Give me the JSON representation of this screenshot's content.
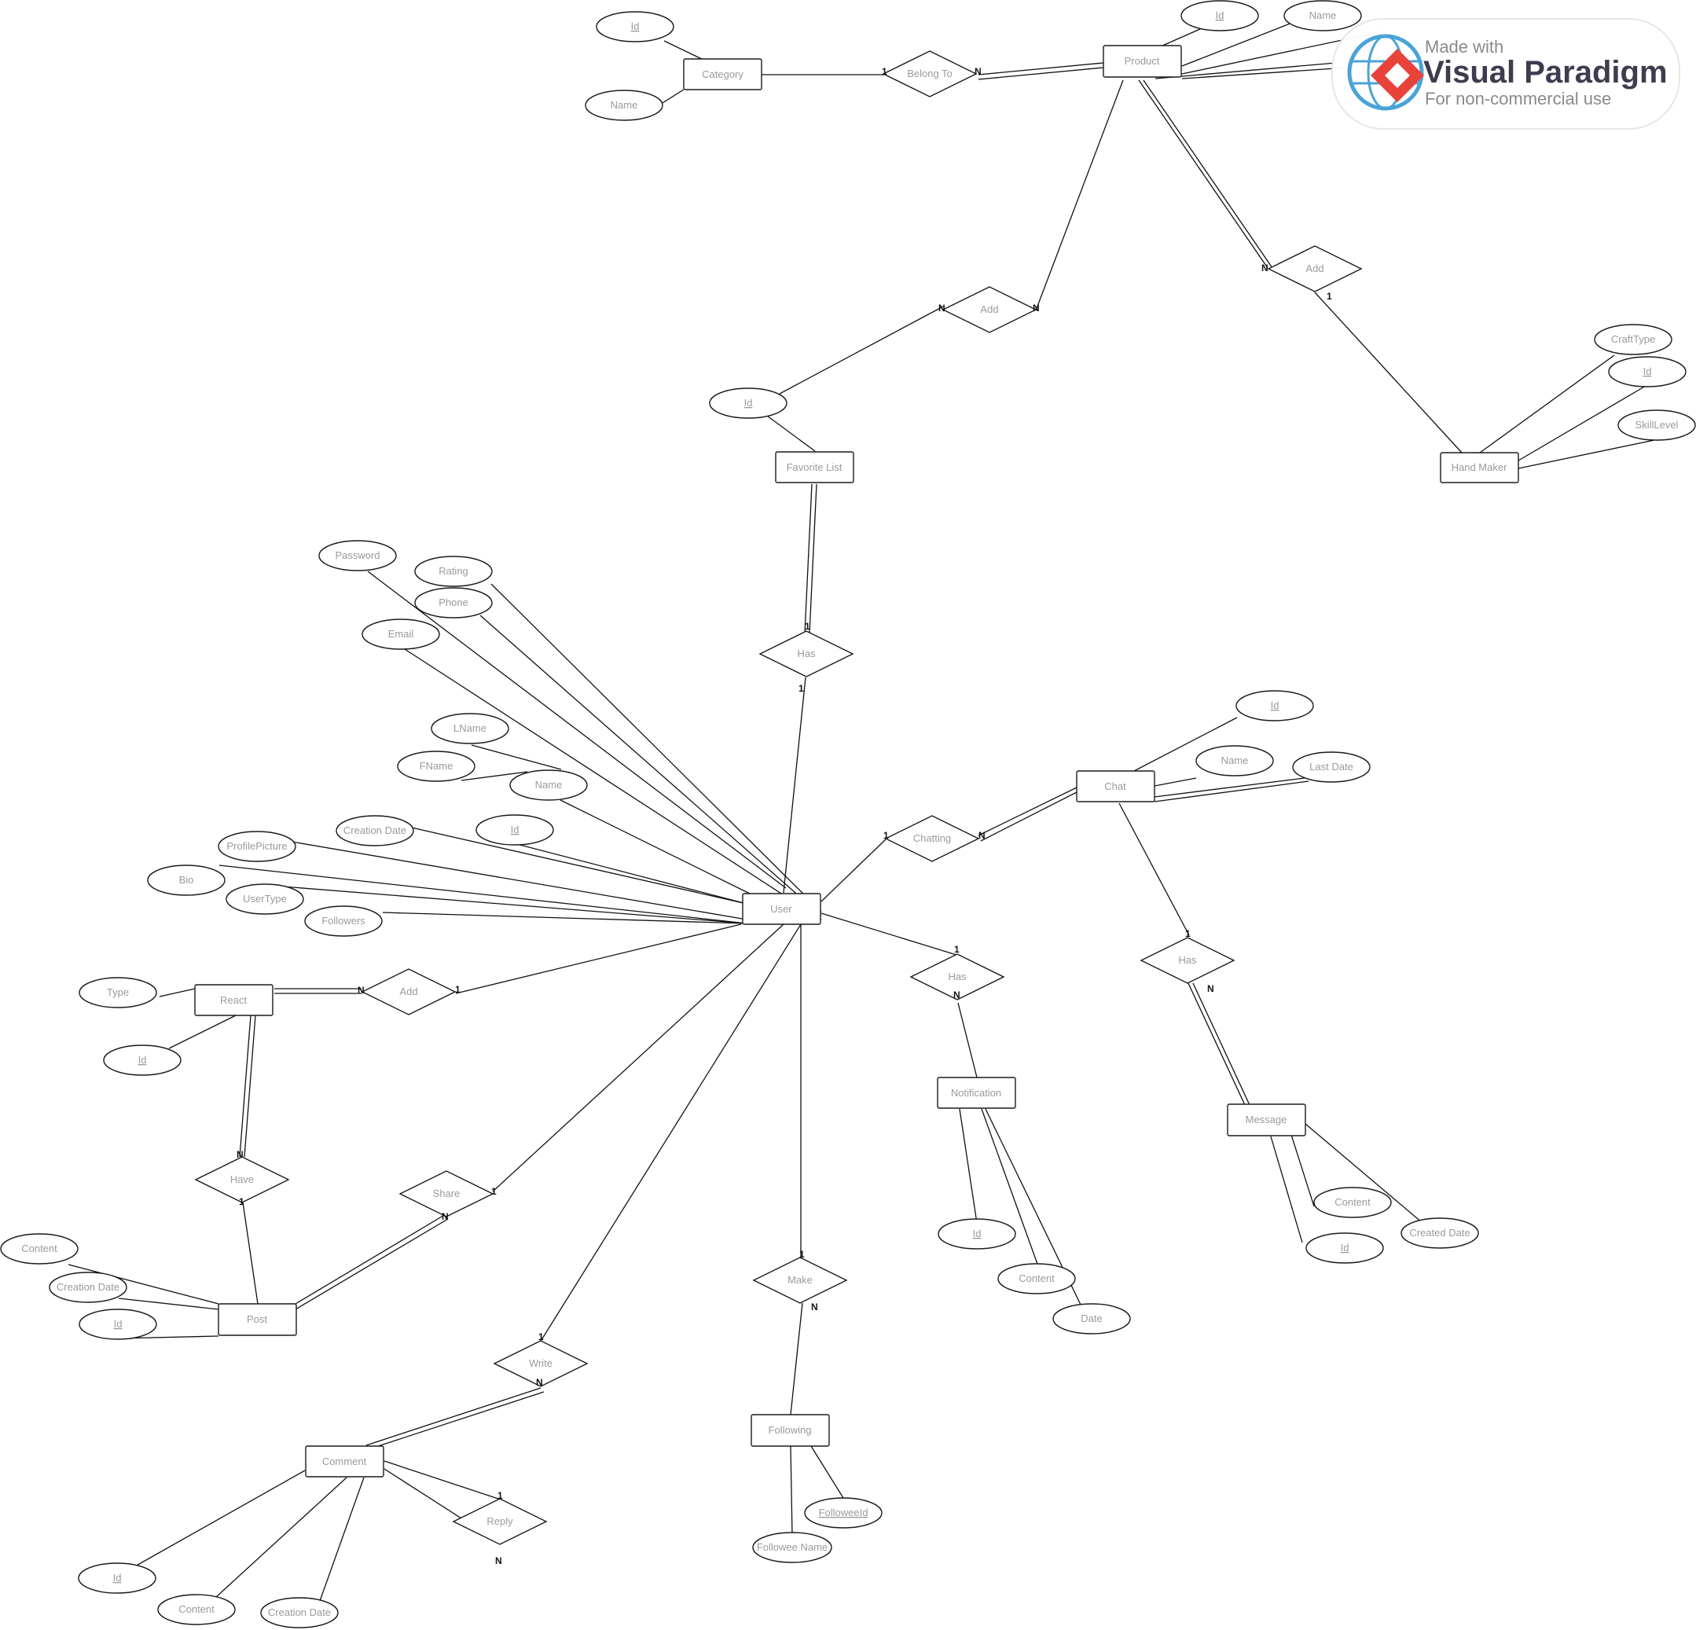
{
  "entities": [
    {
      "id": "category",
      "label": "Category"
    },
    {
      "id": "product",
      "label": "Product"
    },
    {
      "id": "handmaker",
      "label": "Hand Maker"
    },
    {
      "id": "favorite",
      "label": "Favorite List"
    },
    {
      "id": "user",
      "label": "User"
    },
    {
      "id": "chat",
      "label": "Chat"
    },
    {
      "id": "react",
      "label": "React"
    },
    {
      "id": "notification",
      "label": "Notification"
    },
    {
      "id": "message",
      "label": "Message"
    },
    {
      "id": "post",
      "label": "Post"
    },
    {
      "id": "comment",
      "label": "Comment"
    },
    {
      "id": "following",
      "label": "Following"
    }
  ],
  "relationships": [
    {
      "id": "belongto",
      "label": "Belong To"
    },
    {
      "id": "add_hm",
      "label": "Add"
    },
    {
      "id": "add_fav",
      "label": "Add"
    },
    {
      "id": "has_fav",
      "label": "Has"
    },
    {
      "id": "chatting",
      "label": "Chatting"
    },
    {
      "id": "add_react",
      "label": "Add"
    },
    {
      "id": "has_notif",
      "label": "Has"
    },
    {
      "id": "has_msg",
      "label": "Has"
    },
    {
      "id": "have",
      "label": "Have"
    },
    {
      "id": "share",
      "label": "Share"
    },
    {
      "id": "make",
      "label": "Make"
    },
    {
      "id": "write",
      "label": "Write"
    },
    {
      "id": "reply",
      "label": "Reply"
    }
  ],
  "attributes": [
    {
      "id": "cat_id",
      "label": "Id",
      "key": true
    },
    {
      "id": "cat_name",
      "label": "Name",
      "key": false
    },
    {
      "id": "prod_id",
      "label": "Id",
      "key": true
    },
    {
      "id": "prod_name",
      "label": "Name",
      "key": false
    },
    {
      "id": "hm_crafttype",
      "label": "CraftType",
      "key": false
    },
    {
      "id": "hm_id",
      "label": "Id",
      "key": true
    },
    {
      "id": "hm_skill",
      "label": "SkillLevel",
      "key": false
    },
    {
      "id": "fav_id",
      "label": "Id",
      "key": true
    },
    {
      "id": "u_password",
      "label": "Password",
      "key": false
    },
    {
      "id": "u_rating",
      "label": "Rating",
      "key": false
    },
    {
      "id": "u_phone",
      "label": "Phone",
      "key": false
    },
    {
      "id": "u_email",
      "label": "Email",
      "key": false
    },
    {
      "id": "u_lname",
      "label": "LName",
      "key": false
    },
    {
      "id": "u_fname",
      "label": "FName",
      "key": false
    },
    {
      "id": "u_name",
      "label": "Name",
      "key": false
    },
    {
      "id": "u_created",
      "label": "Creation Date",
      "key": false
    },
    {
      "id": "u_id",
      "label": "Id",
      "key": true
    },
    {
      "id": "u_profile",
      "label": "ProfilePicture",
      "key": false
    },
    {
      "id": "u_bio",
      "label": "Bio",
      "key": false
    },
    {
      "id": "u_usertype",
      "label": "UserType",
      "key": false
    },
    {
      "id": "u_followers",
      "label": "Followers",
      "key": false
    },
    {
      "id": "chat_id",
      "label": "Id",
      "key": true
    },
    {
      "id": "chat_name",
      "label": "Name",
      "key": false
    },
    {
      "id": "chat_last",
      "label": "Last Date",
      "key": false
    },
    {
      "id": "react_type",
      "label": "Type",
      "key": false
    },
    {
      "id": "react_id",
      "label": "Id",
      "key": true
    },
    {
      "id": "notif_id",
      "label": "Id",
      "key": true
    },
    {
      "id": "notif_content",
      "label": "Content",
      "key": false
    },
    {
      "id": "notif_date",
      "label": "Date",
      "key": false
    },
    {
      "id": "msg_content",
      "label": "Content",
      "key": false
    },
    {
      "id": "msg_created",
      "label": "Created Date",
      "key": false
    },
    {
      "id": "msg_id",
      "label": "Id",
      "key": true
    },
    {
      "id": "post_content",
      "label": "Content",
      "key": false
    },
    {
      "id": "post_created",
      "label": "Creation Date",
      "key": false
    },
    {
      "id": "post_id",
      "label": "Id",
      "key": true
    },
    {
      "id": "fol_followeeid",
      "label": "FolloweeId",
      "key": true
    },
    {
      "id": "fol_name",
      "label": "Followee Name",
      "key": false
    },
    {
      "id": "com_id",
      "label": "Id",
      "key": true
    },
    {
      "id": "com_content",
      "label": "Content",
      "key": false
    },
    {
      "id": "com_created",
      "label": "Creation Date",
      "key": false
    }
  ],
  "cardinalities": {
    "belongto_cat": "1",
    "belongto_prod": "N",
    "addhm_prod": "N",
    "addhm_hm": "1",
    "addfav_fav": "N",
    "addfav_prod": "N",
    "hasfav_fav": "1",
    "hasfav_user": "1",
    "chatting_user": "1",
    "chatting_chat": "N",
    "addreact_react": "N",
    "addreact_user": "1",
    "hasnotif_user": "1",
    "hasnotif_notif": "N",
    "hasmsg_chat": "1",
    "hasmsg_msg": "N",
    "have_react": "N",
    "have_post": "1",
    "share_user": "1",
    "share_post": "N",
    "make_user": "1",
    "make_fol": "N",
    "write_user": "1",
    "write_com": "N",
    "reply_com": "1",
    "reply_n": "N"
  },
  "watermark": {
    "line1": "Made with",
    "line2": "Visual Paradigm",
    "line3": "For non-commercial use"
  }
}
